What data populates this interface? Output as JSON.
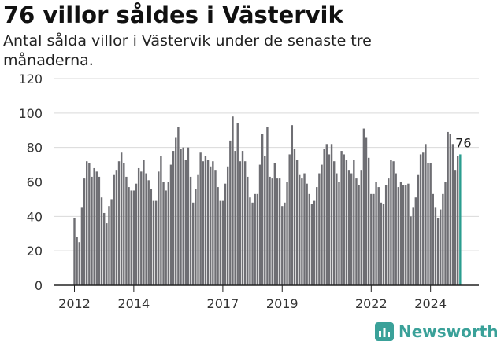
{
  "chart_data": {
    "type": "bar",
    "title": "76 villor såldes i Västervik",
    "subtitle": "Antal sålda villor i Västervik under de senaste tre månaderna.",
    "ylim": [
      0,
      120
    ],
    "y_ticks": [
      "0",
      "20",
      "40",
      "60",
      "80",
      "100",
      "120"
    ],
    "x_ticks": [
      {
        "label": "2012",
        "year": 2012
      },
      {
        "label": "2014",
        "year": 2014
      },
      {
        "label": "2017",
        "year": 2017
      },
      {
        "label": "2019",
        "year": 2019
      },
      {
        "label": "2022",
        "year": 2022
      },
      {
        "label": "2024",
        "year": 2024
      }
    ],
    "start": "2012-01",
    "values": [
      39,
      28,
      25,
      45,
      62,
      72,
      71,
      63,
      68,
      66,
      63,
      51,
      42,
      36,
      46,
      50,
      64,
      67,
      72,
      77,
      71,
      63,
      57,
      55,
      55,
      59,
      68,
      66,
      73,
      65,
      61,
      56,
      49,
      49,
      66,
      75,
      60,
      55,
      60,
      70,
      78,
      86,
      92,
      79,
      80,
      73,
      80,
      63,
      48,
      56,
      64,
      77,
      72,
      75,
      73,
      69,
      72,
      67,
      57,
      49,
      49,
      59,
      69,
      84,
      98,
      78,
      94,
      72,
      78,
      72,
      63,
      51,
      48,
      53,
      53,
      70,
      88,
      75,
      92,
      63,
      62,
      71,
      62,
      62,
      46,
      48,
      60,
      76,
      93,
      79,
      73,
      64,
      62,
      65,
      59,
      53,
      47,
      49,
      57,
      65,
      70,
      79,
      82,
      76,
      82,
      72,
      65,
      60,
      78,
      76,
      73,
      67,
      65,
      73,
      62,
      58,
      67,
      91,
      86,
      74,
      53,
      53,
      60,
      57,
      48,
      47,
      58,
      62,
      73,
      72,
      65,
      57,
      60,
      58,
      58,
      59,
      40,
      45,
      51,
      64,
      76,
      77,
      82,
      71,
      71,
      53,
      45,
      39,
      44,
      53,
      60,
      89,
      88,
      82,
      67,
      75,
      76
    ],
    "highlight_last": true,
    "last_label": "76",
    "colors": {
      "bar": "#6e6e73",
      "highlight": "#2a9d8f",
      "grid": "#d9d9d9",
      "axis": "#222222"
    }
  },
  "brand": {
    "name": "Newsworthy"
  }
}
